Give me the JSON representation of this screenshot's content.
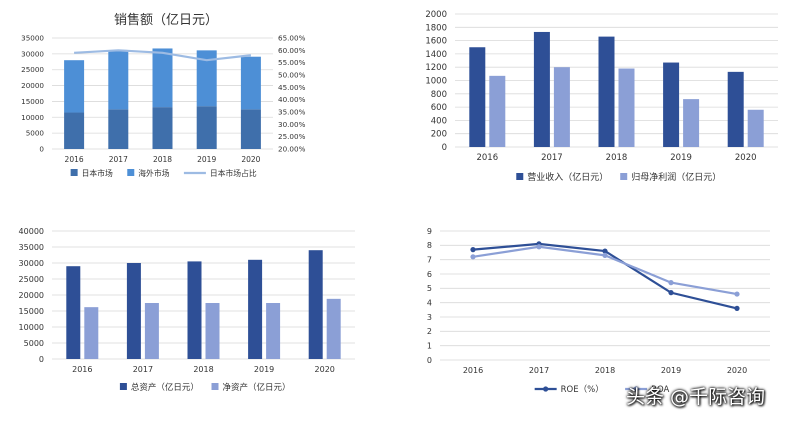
{
  "chart_data": [
    {
      "id": "sales",
      "type": "bar",
      "stacked": true,
      "title": "销售额（亿日元）",
      "categories": [
        "2016",
        "2017",
        "2018",
        "2019",
        "2020"
      ],
      "series": [
        {
          "name": "日本市场",
          "kind": "bar",
          "axis": "left",
          "color": "#3f6fab",
          "values": [
            11500,
            12500,
            13200,
            13500,
            12500
          ]
        },
        {
          "name": "海外市场",
          "kind": "bar",
          "axis": "left",
          "color": "#4d8fd6",
          "values": [
            16500,
            18300,
            18500,
            17600,
            16600
          ]
        },
        {
          "name": "日本市场占比",
          "kind": "line",
          "axis": "right",
          "color": "#9dbbe3",
          "values": [
            0.59,
            0.6,
            0.59,
            0.56,
            0.58
          ]
        }
      ],
      "ylim": [
        0,
        35000
      ],
      "yticks": [
        "0",
        "5000",
        "10000",
        "15000",
        "20000",
        "25000",
        "30000",
        "35000"
      ],
      "y2lim": [
        0.2,
        0.65
      ],
      "y2ticks": [
        "20.00%",
        "25.00%",
        "30.00%",
        "35.00%",
        "40.00%",
        "45.00%",
        "50.00%",
        "55.00%",
        "60.00%",
        "65.00%"
      ],
      "grid": true,
      "legend": "bottom"
    },
    {
      "id": "revenue",
      "type": "bar",
      "title": "",
      "categories": [
        "2016",
        "2017",
        "2018",
        "2019",
        "2020"
      ],
      "series": [
        {
          "name": "营业收入（亿日元）",
          "color": "#2e4f96",
          "values": [
            1500,
            1730,
            1660,
            1270,
            1130
          ]
        },
        {
          "name": "归母净利润（亿日元）",
          "color": "#8b9fd6",
          "values": [
            1070,
            1200,
            1180,
            720,
            560
          ]
        }
      ],
      "ylim": [
        0,
        2000
      ],
      "yticks": [
        "0",
        "200",
        "400",
        "600",
        "800",
        "1000",
        "1200",
        "1400",
        "1600",
        "1800",
        "2000"
      ],
      "grid": true,
      "legend": "bottom"
    },
    {
      "id": "assets",
      "type": "bar",
      "title": "",
      "categories": [
        "2016",
        "2017",
        "2018",
        "2019",
        "2020"
      ],
      "series": [
        {
          "name": "总资产（亿日元）",
          "color": "#2e4f96",
          "values": [
            29000,
            30000,
            30500,
            31000,
            34000
          ]
        },
        {
          "name": "净资产（亿日元）",
          "color": "#8b9fd6",
          "values": [
            16200,
            17500,
            17500,
            17500,
            18800
          ]
        }
      ],
      "ylim": [
        0,
        40000
      ],
      "yticks": [
        "0",
        "5000",
        "10000",
        "15000",
        "20000",
        "25000",
        "30000",
        "35000",
        "40000"
      ],
      "grid": true,
      "legend": "bottom"
    },
    {
      "id": "roe",
      "type": "line",
      "title": "",
      "categories": [
        "2016",
        "2017",
        "2018",
        "2019",
        "2020"
      ],
      "series": [
        {
          "name": "ROE（%）",
          "color": "#2e4f96",
          "values": [
            7.7,
            8.1,
            7.6,
            4.7,
            3.6
          ]
        },
        {
          "name": "ROA",
          "color": "#8b9fd6",
          "values": [
            7.2,
            7.9,
            7.3,
            5.4,
            4.6
          ]
        }
      ],
      "ylim": [
        0,
        9
      ],
      "yticks": [
        "0",
        "1",
        "2",
        "3",
        "4",
        "5",
        "6",
        "7",
        "8",
        "9"
      ],
      "grid": true,
      "legend": "bottom"
    }
  ],
  "watermark": "头条 @千际咨询"
}
